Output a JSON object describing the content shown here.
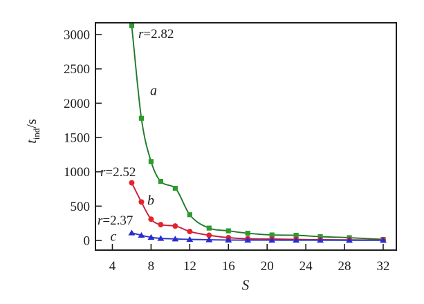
{
  "figure": {
    "background": "#ffffff",
    "text_color": "#1a1a1a",
    "frame_color": "#1c1c1c"
  },
  "chart_data": {
    "type": "line",
    "title": "",
    "xlabel": "S",
    "ylabel": "t_ind/s",
    "ylabel_parts": {
      "symbol": "t",
      "subscript": "ind",
      "unit": "/s"
    },
    "x_ticks": [
      4,
      8,
      12,
      16,
      20,
      24,
      28,
      32
    ],
    "y_ticks": [
      0,
      500,
      1000,
      1500,
      2000,
      2500,
      3000
    ],
    "xlim": [
      2.25,
      33.36
    ],
    "ylim": [
      -141,
      3172
    ],
    "grid": false,
    "legend_position": "none",
    "x": [
      6,
      7,
      8,
      9,
      10.5,
      12,
      14,
      16,
      18,
      20.5,
      23,
      25.5,
      28.5,
      32
    ],
    "series": [
      {
        "name": "a",
        "r_label": "r=2.82",
        "marker": "square",
        "marker_color": "#2E9B2E",
        "line_color": "#1E7A28",
        "values": [
          3130,
          1780,
          1150,
          860,
          760,
          375,
          180,
          140,
          105,
          80,
          75,
          55,
          40,
          15
        ]
      },
      {
        "name": "b",
        "r_label": "r=2.52",
        "marker": "circle",
        "marker_color": "#E3242B",
        "line_color": "#C81F3E",
        "values": [
          840,
          560,
          310,
          230,
          210,
          130,
          75,
          40,
          25,
          20,
          15,
          10,
          8,
          5
        ]
      },
      {
        "name": "c",
        "r_label": "r=2.37",
        "marker": "triangle",
        "marker_color": "#2B2BD0",
        "line_color": "#2836C4",
        "values": [
          110,
          75,
          45,
          30,
          22,
          15,
          10,
          6,
          5,
          4,
          3,
          3,
          2,
          2
        ]
      }
    ],
    "annotations": [
      {
        "kind": "r-label",
        "series": "a",
        "var": "r",
        "value": "=2.82",
        "x": 200,
        "y": 50
      },
      {
        "kind": "series-letter",
        "series": "a",
        "var": "a",
        "value": "",
        "x": 222,
        "y": 132
      },
      {
        "kind": "r-label",
        "series": "b",
        "var": "r",
        "value": "=2.52",
        "x": 145,
        "y": 250
      },
      {
        "kind": "series-letter",
        "series": "b",
        "var": "b",
        "value": "",
        "x": 218,
        "y": 291
      },
      {
        "kind": "r-label",
        "series": "c",
        "var": "r",
        "value": "=2.37",
        "x": 141,
        "y": 320
      },
      {
        "kind": "series-letter",
        "series": "c",
        "var": "c",
        "value": "",
        "x": 164,
        "y": 343
      }
    ]
  }
}
